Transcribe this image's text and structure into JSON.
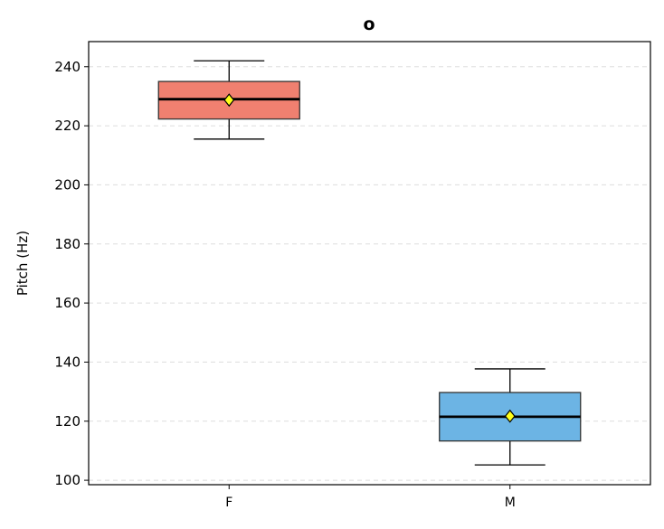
{
  "chart_data": {
    "type": "box",
    "title": "o",
    "xlabel": "",
    "ylabel": "Pitch (Hz)",
    "ylim": [
      98.5,
      248.5
    ],
    "yticks": [
      100,
      120,
      140,
      160,
      180,
      200,
      220,
      240
    ],
    "grid": "y-dashed",
    "categories": [
      "F",
      "M"
    ],
    "boxes": [
      {
        "category": "F",
        "whisker_low": 215.5,
        "q1": 222.3,
        "median": 229.0,
        "q3": 235.0,
        "whisker_high": 242.0,
        "mean": 228.7,
        "color": "#F08070"
      },
      {
        "category": "M",
        "whisker_low": 105.2,
        "q1": 113.3,
        "median": 121.5,
        "q3": 129.7,
        "whisker_high": 137.7,
        "mean": 121.7,
        "color": "#6CB4E4"
      }
    ],
    "mean_marker_color": "#FFFF1A"
  }
}
